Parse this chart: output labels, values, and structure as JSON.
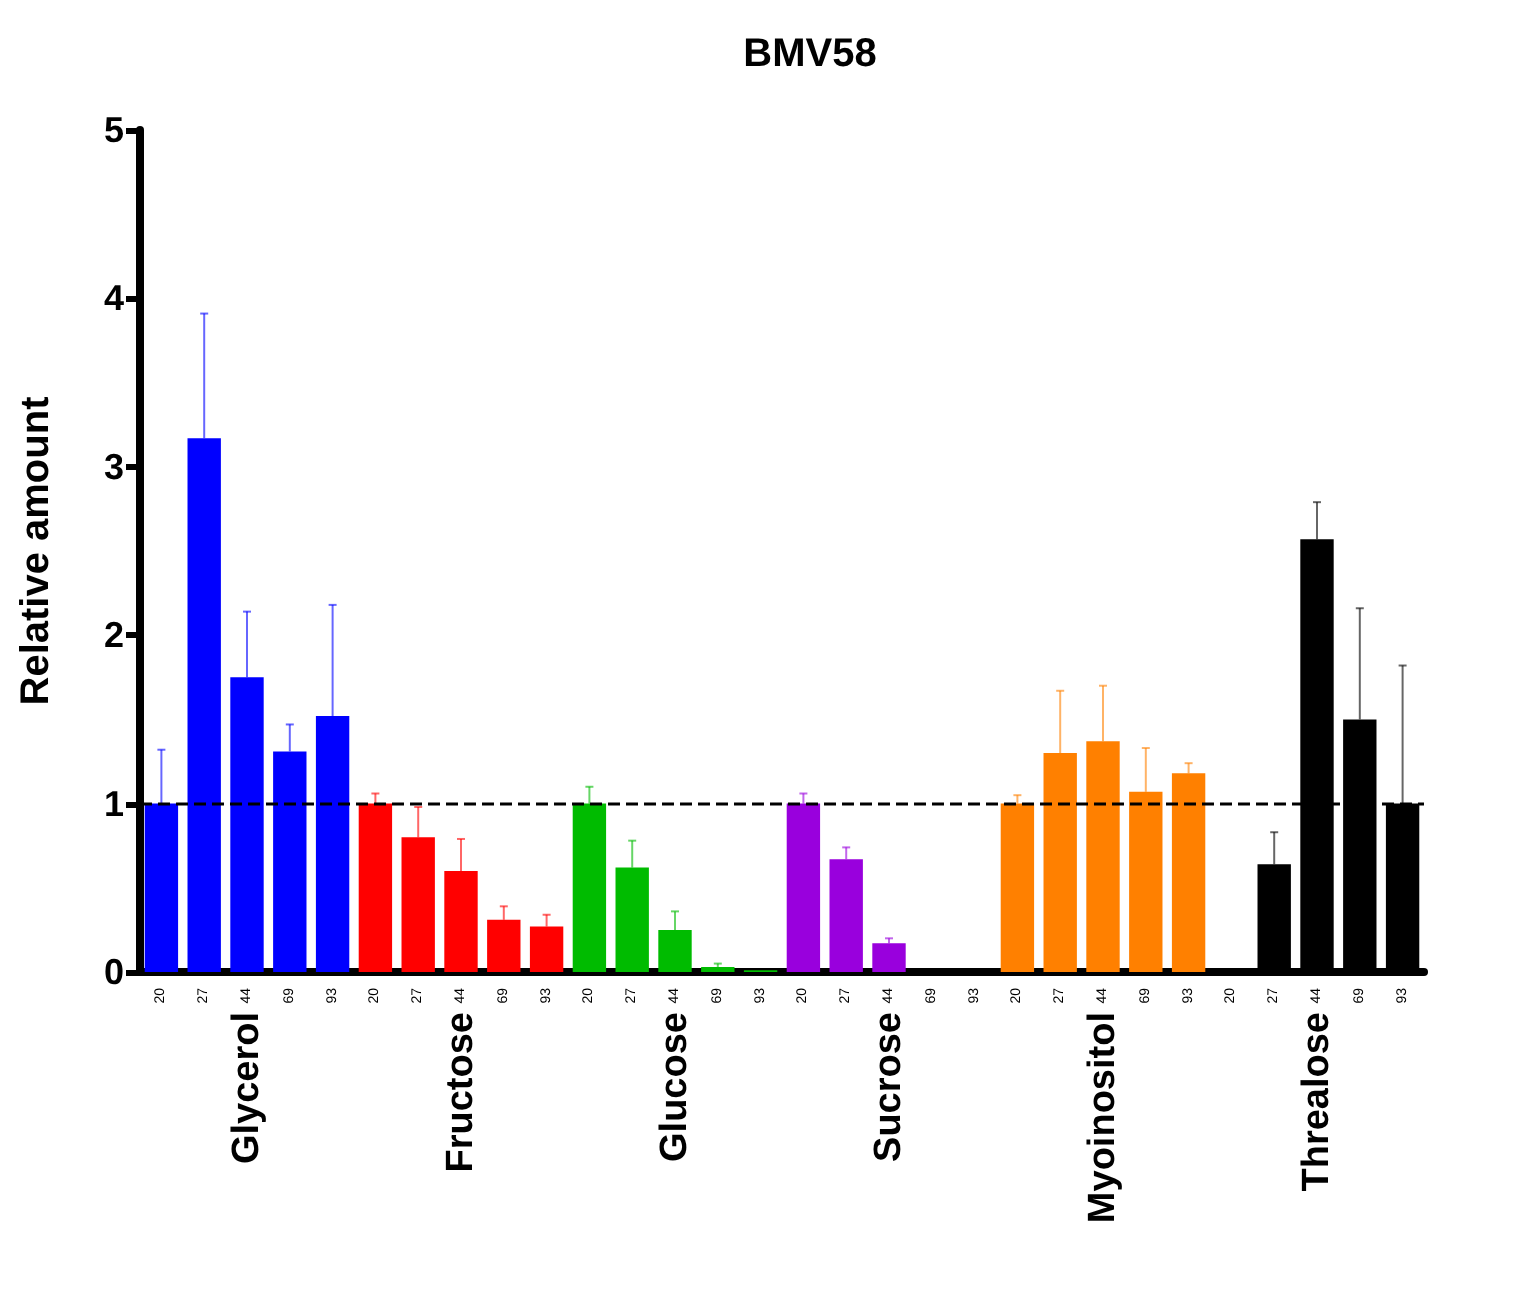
{
  "chart_data": {
    "type": "bar",
    "title": "BMV58",
    "ylabel": "Relative amount",
    "categories": [
      "20",
      "27",
      "44",
      "69",
      "93",
      "20",
      "27",
      "44",
      "69",
      "93",
      "20",
      "27",
      "44",
      "69",
      "93",
      "20",
      "27",
      "44",
      "69",
      "93",
      "20",
      "27",
      "44",
      "69",
      "93",
      "20",
      "27",
      "44",
      "69",
      "93"
    ],
    "series": [
      {
        "name": "Glycerol",
        "color": "#0000ff",
        "values": [
          1.0,
          3.17,
          1.75,
          1.31,
          1.52,
          null,
          null,
          null,
          null,
          null,
          null,
          null,
          null,
          null,
          null,
          null,
          null,
          null,
          null,
          null,
          null,
          null,
          null,
          null,
          null,
          null,
          null,
          null,
          null,
          null
        ],
        "errors": [
          [
            1.0,
            1.32
          ],
          [
            3.17,
            3.91
          ],
          [
            1.75,
            2.14
          ],
          [
            1.31,
            1.47
          ],
          [
            1.52,
            2.18
          ],
          null,
          null,
          null,
          null,
          null,
          null,
          null,
          null,
          null,
          null,
          null,
          null,
          null,
          null,
          null,
          null,
          null,
          null,
          null,
          null,
          null,
          null,
          null,
          null,
          null
        ]
      },
      {
        "name": "Fructose",
        "color": "#ff0000",
        "values": [
          null,
          null,
          null,
          null,
          null,
          1.0,
          0.8,
          0.6,
          0.31,
          0.27,
          null,
          null,
          null,
          null,
          null,
          null,
          null,
          null,
          null,
          null,
          null,
          null,
          null,
          null,
          null,
          null,
          null,
          null,
          null,
          null
        ],
        "errors": [
          null,
          null,
          null,
          null,
          null,
          [
            1.0,
            1.06
          ],
          [
            0.8,
            0.98
          ],
          [
            0.6,
            0.79
          ],
          [
            0.31,
            0.39
          ],
          [
            0.27,
            0.34
          ],
          null,
          null,
          null,
          null,
          null,
          null,
          null,
          null,
          null,
          null,
          null,
          null,
          null,
          null,
          null,
          null,
          null,
          null,
          null,
          null
        ]
      },
      {
        "name": "Glucose",
        "color": "#00bb00",
        "values": [
          null,
          null,
          null,
          null,
          null,
          null,
          null,
          null,
          null,
          null,
          1.0,
          0.62,
          0.25,
          0.03,
          0.01,
          null,
          null,
          null,
          null,
          null,
          null,
          null,
          null,
          null,
          null,
          null,
          null,
          null,
          null,
          null
        ],
        "errors": [
          null,
          null,
          null,
          null,
          null,
          null,
          null,
          null,
          null,
          null,
          [
            1.0,
            1.1
          ],
          [
            0.62,
            0.78
          ],
          [
            0.25,
            0.36
          ],
          [
            0.03,
            0.05
          ],
          null,
          null,
          null,
          null,
          null,
          null,
          null,
          null,
          null,
          null,
          null,
          null,
          null,
          null,
          null,
          null
        ]
      },
      {
        "name": "Sucrose",
        "color": "#9900dd",
        "values": [
          null,
          null,
          null,
          null,
          null,
          null,
          null,
          null,
          null,
          null,
          null,
          null,
          null,
          null,
          null,
          1.0,
          0.67,
          0.17,
          0,
          0,
          null,
          null,
          null,
          null,
          null,
          null,
          null,
          null,
          null,
          null
        ],
        "errors": [
          null,
          null,
          null,
          null,
          null,
          null,
          null,
          null,
          null,
          null,
          null,
          null,
          null,
          null,
          null,
          [
            1.0,
            1.06
          ],
          [
            0.67,
            0.74
          ],
          [
            0.17,
            0.2
          ],
          null,
          null,
          null,
          null,
          null,
          null,
          null,
          null,
          null,
          null,
          null,
          null
        ]
      },
      {
        "name": "Myoinositol",
        "color": "#ff8000",
        "values": [
          null,
          null,
          null,
          null,
          null,
          null,
          null,
          null,
          null,
          null,
          null,
          null,
          null,
          null,
          null,
          null,
          null,
          null,
          null,
          null,
          1.0,
          1.3,
          1.37,
          1.07,
          1.18,
          null,
          null,
          null,
          null,
          null
        ],
        "errors": [
          null,
          null,
          null,
          null,
          null,
          null,
          null,
          null,
          null,
          null,
          null,
          null,
          null,
          null,
          null,
          null,
          null,
          null,
          null,
          null,
          [
            1.0,
            1.05
          ],
          [
            1.3,
            1.67
          ],
          [
            1.37,
            1.7
          ],
          [
            1.07,
            1.33
          ],
          [
            1.18,
            1.24
          ],
          null,
          null,
          null,
          null,
          null
        ]
      },
      {
        "name": "Threalose",
        "color": "#000000",
        "values": [
          null,
          null,
          null,
          null,
          null,
          null,
          null,
          null,
          null,
          null,
          null,
          null,
          null,
          null,
          null,
          null,
          null,
          null,
          null,
          null,
          null,
          null,
          null,
          null,
          null,
          0,
          0.64,
          2.57,
          1.5,
          1.0
        ],
        "errors": [
          null,
          null,
          null,
          null,
          null,
          null,
          null,
          null,
          null,
          null,
          null,
          null,
          null,
          null,
          null,
          null,
          null,
          null,
          null,
          null,
          null,
          null,
          null,
          null,
          null,
          null,
          [
            0.64,
            0.83
          ],
          [
            2.57,
            2.79
          ],
          [
            1.5,
            2.16
          ],
          [
            1.0,
            1.82
          ]
        ]
      }
    ],
    "ylim": [
      0,
      5
    ],
    "yticks": [
      0,
      1,
      2,
      3,
      4,
      5
    ],
    "ref_lines": [
      {
        "axis": "y",
        "value": 1,
        "line_style": "dashed",
        "color": "#000000"
      }
    ],
    "grid": false,
    "legend": false
  }
}
